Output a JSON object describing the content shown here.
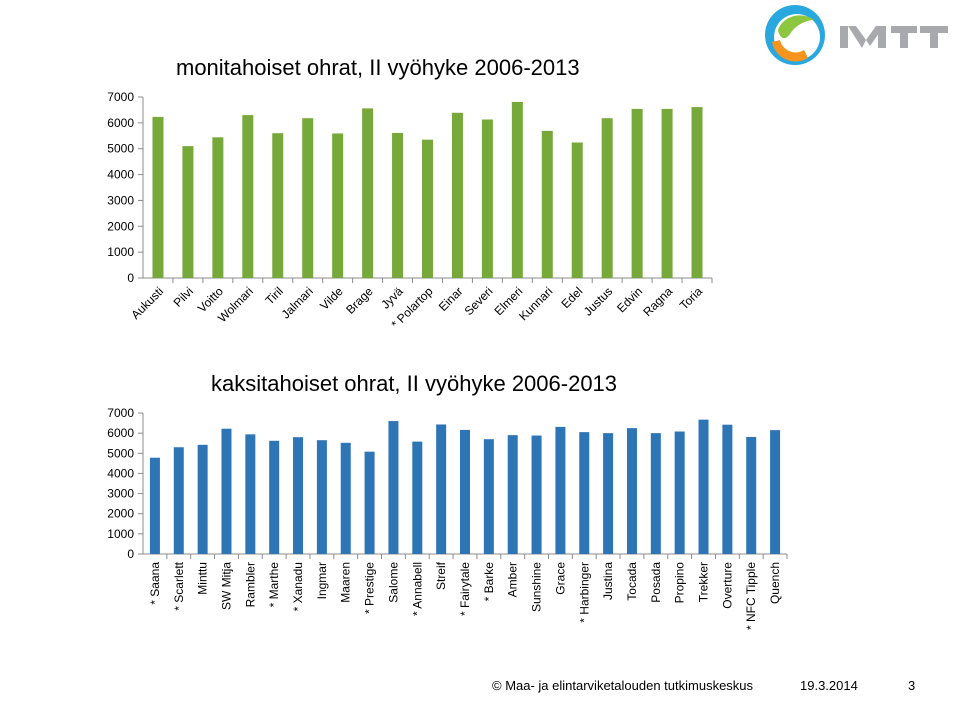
{
  "chart_data": [
    {
      "type": "bar",
      "title": "monitahoiset ohrat, II vyöhyke 2006-2013",
      "categories": [
        "Aukusti",
        "Pilvi",
        "Voitto",
        "Wolmari",
        "Tiril",
        "Jalmari",
        "Vilde",
        "Brage",
        "Jyvä",
        "* Polartop",
        "Einar",
        "Severi",
        "Elmeri",
        "Kunnari",
        "Edel",
        "Justus",
        "Edvin",
        "Ragna",
        "Toria"
      ],
      "values": [
        6230,
        5100,
        5440,
        6300,
        5600,
        6180,
        5590,
        6560,
        5610,
        5350,
        6390,
        6130,
        6810,
        5690,
        5240,
        6180,
        6540,
        6540,
        6610
      ],
      "ylim": [
        0,
        7000
      ],
      "yticks": [
        0,
        1000,
        2000,
        3000,
        4000,
        5000,
        6000,
        7000
      ],
      "color": "#77a83a",
      "grid": false
    },
    {
      "type": "bar",
      "title": "kaksitahoiset ohrat, II vyöhyke 2006-2013",
      "categories": [
        "* Saana",
        "* Scarlett",
        "Minttu",
        "SW Mitja",
        "Rambler",
        "* Marthe",
        "* Xanadu",
        "Ingmar",
        "Maaren",
        "* Prestige",
        "Salome",
        "* Annabell",
        "Streif",
        "* Fairytale",
        "* Barke",
        "Amber",
        "Sunshine",
        "Grace",
        "* Harbinger",
        "Justina",
        "Tocada",
        "Posada",
        "Propino",
        "Trekker",
        "Overture",
        "* NFC Tipple",
        "Quench"
      ],
      "values": [
        4780,
        5300,
        5420,
        6220,
        5940,
        5620,
        5800,
        5650,
        5520,
        5080,
        6600,
        5580,
        6430,
        6160,
        5700,
        5900,
        5880,
        6310,
        6050,
        6000,
        6250,
        6000,
        6080,
        6670,
        6420,
        5810,
        6150
      ],
      "ylim": [
        0,
        7000
      ],
      "yticks": [
        0,
        1000,
        2000,
        3000,
        4000,
        5000,
        6000,
        7000
      ],
      "color": "#2e75b6",
      "grid": false
    }
  ],
  "footer": {
    "copyright": "© Maa- ja elintarviketalouden tutkimuskeskus",
    "date": "19.3.2014",
    "page": "3"
  },
  "logo": {
    "text": "MTT",
    "colors": [
      "#29a8e0",
      "#8dc63f",
      "#f7941d",
      "#a7a9ac"
    ]
  }
}
